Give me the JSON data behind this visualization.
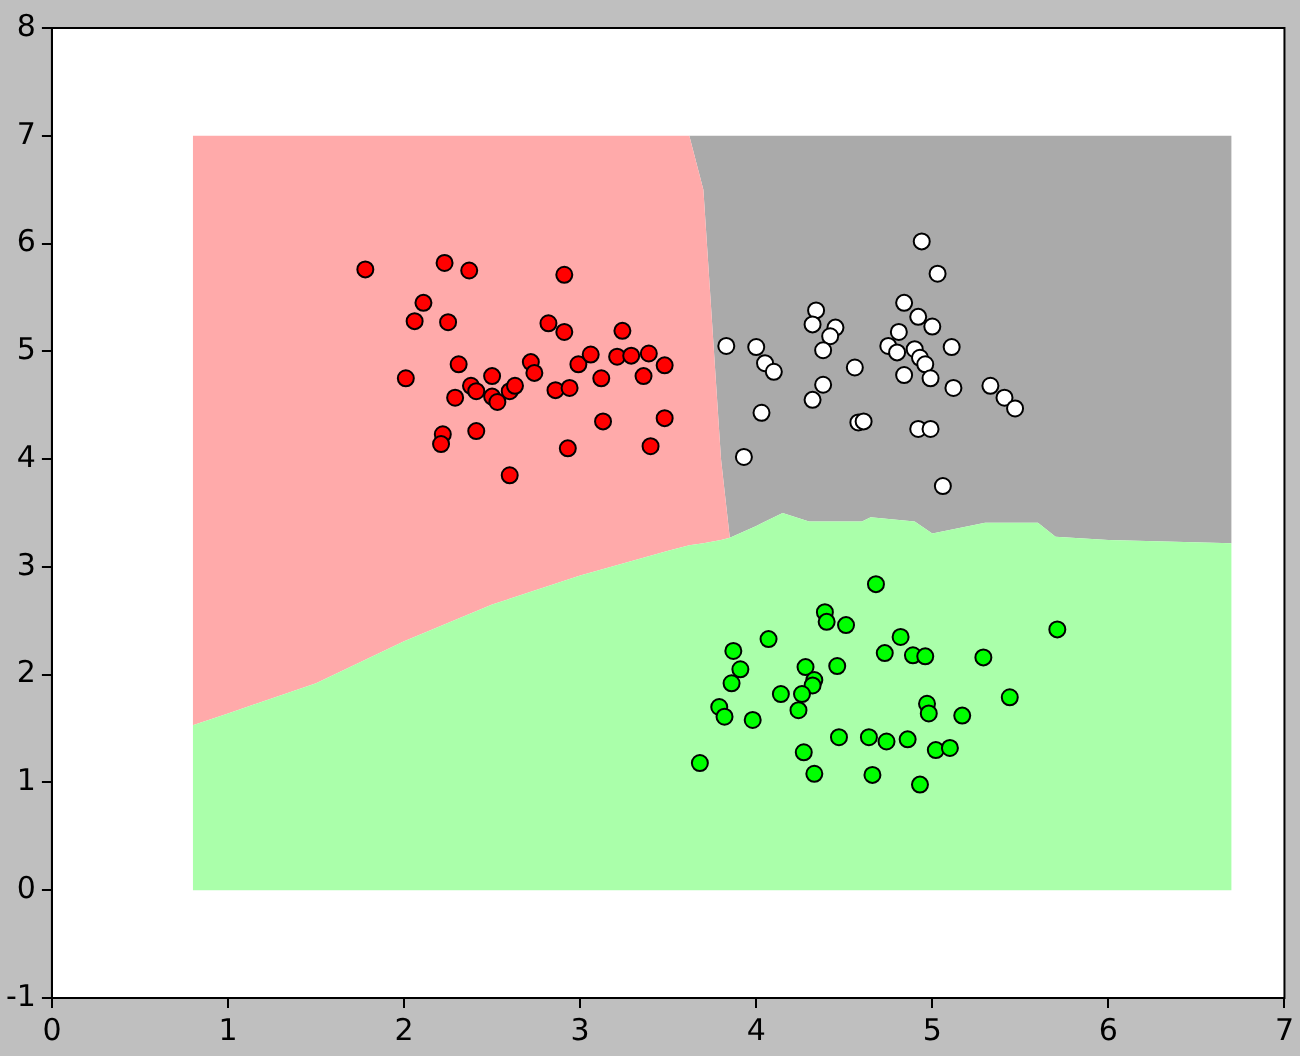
{
  "chart_data": {
    "type": "scatter",
    "stacked": true,
    "xlim": [
      0,
      7
    ],
    "ylim": [
      -1,
      8
    ],
    "xticks": [
      0,
      1,
      2,
      3,
      4,
      5,
      6,
      7
    ],
    "yticks": [
      -1,
      0,
      1,
      2,
      3,
      4,
      5,
      6,
      7,
      8
    ],
    "grid": false,
    "legend": false,
    "series": [
      {
        "type": "area",
        "marker": "none",
        "color": "#aaffaa",
        "x": [
          0.8,
          1,
          1.5,
          2,
          2.5,
          3,
          3.5,
          3.62,
          3.7,
          3.8,
          3.85,
          4.0,
          4.15,
          4.3,
          4.6,
          4.65,
          4.9,
          5.0,
          5.3,
          5.6,
          5.7,
          6,
          6.7
        ],
        "values": [
          1.53,
          1.64,
          1.92,
          2.31,
          2.65,
          2.92,
          3.15,
          3.2,
          3.22,
          3.25,
          3.27,
          3.38,
          3.5,
          3.42,
          3.42,
          3.46,
          3.42,
          3.31,
          3.41,
          3.41,
          3.28,
          3.25,
          3.22
        ]
      },
      {
        "type": "area",
        "marker": "none",
        "color": "#ffaaaa",
        "x": [
          0.8,
          1,
          1.5,
          2,
          2.5,
          3,
          3.5,
          3.62,
          3.7,
          3.8,
          3.85,
          4.0,
          4.15,
          4.3,
          4.6,
          4.65,
          4.9,
          5.0,
          5.3,
          5.6,
          5.7,
          6,
          6.7
        ],
        "values": [
          5.47,
          5.36,
          5.08,
          4.69,
          4.35,
          4.08,
          3.85,
          3.8,
          3.28,
          0.75,
          0,
          0,
          0,
          0,
          0,
          0,
          0,
          0,
          0,
          0,
          0,
          0,
          0
        ]
      },
      {
        "type": "area",
        "marker": "none",
        "color": "#aaaaaa",
        "x": [
          0.8,
          1,
          1.5,
          2,
          2.5,
          3,
          3.5,
          3.62,
          3.7,
          3.8,
          3.85,
          4.0,
          4.15,
          4.3,
          4.6,
          4.65,
          4.9,
          5.0,
          5.3,
          5.6,
          5.7,
          6,
          6.7
        ],
        "values": [
          0,
          0,
          0,
          0,
          0,
          0,
          0,
          0,
          0.5,
          3.0,
          3.73,
          3.62,
          3.5,
          3.58,
          3.58,
          3.54,
          3.58,
          3.69,
          3.59,
          3.59,
          3.72,
          3.75,
          3.78
        ]
      },
      {
        "marker": "circle",
        "color": "#ff0000",
        "x": [
          1.78,
          2.23,
          2.37,
          2.91,
          2.11,
          2.06,
          2.25,
          2.82,
          2.91,
          3.24,
          2.31,
          2.01,
          2.72,
          2.74,
          2.99,
          3.06,
          3.21,
          3.29,
          3.39,
          3.48,
          3.36,
          3.12,
          2.86,
          2.94,
          2.5,
          2.38,
          2.41,
          2.29,
          2.5,
          2.53,
          2.6,
          2.63,
          3.13,
          3.48,
          2.22,
          2.21,
          2.41,
          2.93,
          3.4,
          2.6
        ],
        "values": [
          5.76,
          5.82,
          5.75,
          5.71,
          5.45,
          5.28,
          5.27,
          5.26,
          5.18,
          5.19,
          4.88,
          4.75,
          4.9,
          4.8,
          4.88,
          4.97,
          4.95,
          4.96,
          4.98,
          4.87,
          4.77,
          4.75,
          4.64,
          4.66,
          4.77,
          4.68,
          4.63,
          4.57,
          4.58,
          4.53,
          4.63,
          4.68,
          4.35,
          4.38,
          4.23,
          4.14,
          4.26,
          4.1,
          4.12,
          3.85
        ]
      },
      {
        "marker": "circle",
        "color": "#ffffff",
        "x": [
          4.94,
          5.03,
          4.84,
          4.92,
          5.0,
          4.81,
          4.34,
          4.32,
          4.45,
          4.42,
          3.83,
          4.0,
          4.38,
          4.75,
          4.8,
          4.9,
          4.93,
          4.96,
          5.11,
          4.05,
          4.1,
          4.56,
          4.84,
          4.99,
          4.38,
          5.12,
          5.33,
          5.41,
          5.47,
          4.32,
          4.03,
          4.58,
          4.61,
          4.92,
          4.99,
          3.93,
          5.06
        ],
        "values": [
          6.02,
          5.72,
          5.45,
          5.32,
          5.23,
          5.18,
          5.38,
          5.25,
          5.22,
          5.14,
          5.05,
          5.04,
          5.01,
          5.05,
          4.99,
          5.02,
          4.94,
          4.88,
          5.04,
          4.89,
          4.81,
          4.85,
          4.78,
          4.75,
          4.69,
          4.66,
          4.68,
          4.57,
          4.47,
          4.55,
          4.43,
          4.34,
          4.35,
          4.28,
          4.28,
          4.02,
          3.75
        ]
      },
      {
        "marker": "circle",
        "color": "#00ff00",
        "x": [
          4.68,
          4.39,
          4.4,
          4.51,
          5.71,
          4.07,
          4.82,
          3.87,
          4.73,
          4.89,
          4.96,
          5.29,
          3.91,
          4.28,
          4.46,
          4.33,
          3.86,
          4.32,
          4.14,
          4.26,
          5.44,
          4.97,
          4.98,
          5.17,
          3.79,
          3.82,
          3.98,
          4.24,
          4.47,
          4.64,
          4.74,
          4.86,
          5.02,
          5.1,
          3.68,
          4.27,
          4.33,
          4.66,
          4.93
        ],
        "values": [
          2.84,
          2.58,
          2.49,
          2.46,
          2.42,
          2.33,
          2.35,
          2.22,
          2.2,
          2.18,
          2.17,
          2.16,
          2.05,
          2.07,
          2.08,
          1.95,
          1.92,
          1.9,
          1.82,
          1.82,
          1.79,
          1.73,
          1.64,
          1.62,
          1.7,
          1.61,
          1.58,
          1.67,
          1.42,
          1.42,
          1.38,
          1.4,
          1.3,
          1.32,
          1.18,
          1.28,
          1.08,
          1.07,
          0.98
        ]
      }
    ]
  }
}
